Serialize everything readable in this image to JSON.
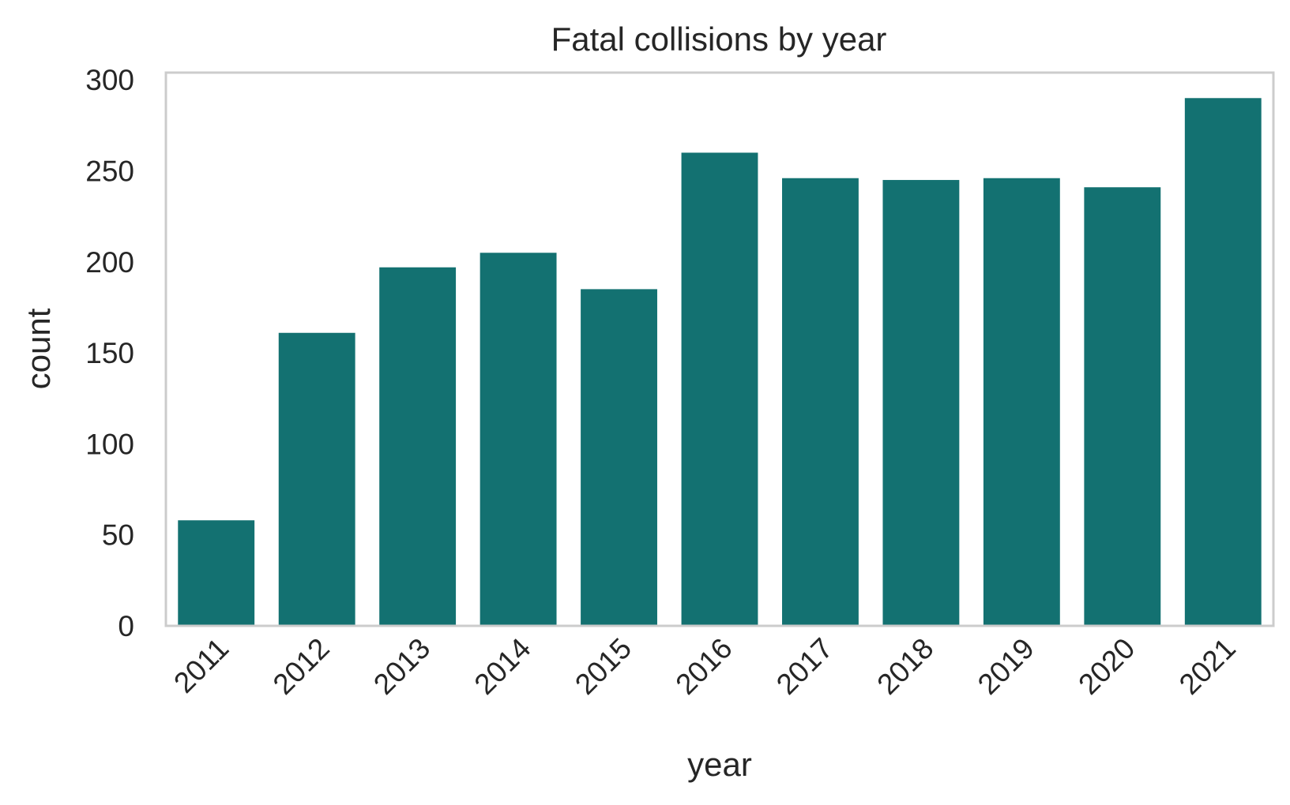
{
  "chart_data": {
    "type": "bar",
    "title": "Fatal collisions by year",
    "xlabel": "year",
    "ylabel": "count",
    "categories": [
      "2011",
      "2012",
      "2013",
      "2014",
      "2015",
      "2016",
      "2017",
      "2018",
      "2019",
      "2020",
      "2021"
    ],
    "values": [
      58,
      161,
      197,
      205,
      185,
      260,
      246,
      245,
      246,
      241,
      290
    ],
    "ylim": [
      0,
      304
    ],
    "yticks": [
      0,
      50,
      100,
      150,
      200,
      250,
      300
    ],
    "grid": false,
    "legend": "none",
    "colors": {
      "bar": "#137171",
      "axes_edge": "#cccccc",
      "text": "#262626"
    }
  }
}
